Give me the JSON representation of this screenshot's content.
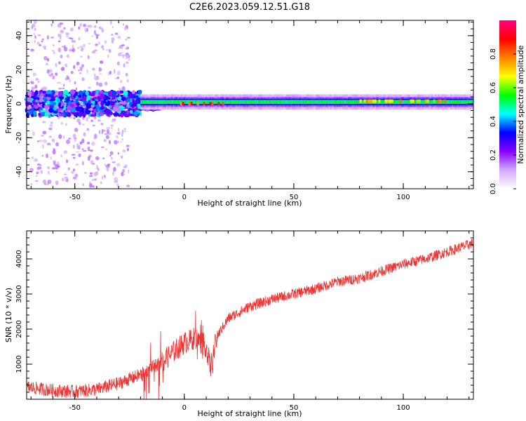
{
  "figure": {
    "title": "C2E6.2023.059.12.51.G18"
  },
  "chart_data": [
    {
      "type": "heatmap",
      "title": "",
      "xlabel": "Height of straight line (km)",
      "ylabel": "Frequency (Hz)",
      "xlim": [
        -72,
        132
      ],
      "ylim": [
        -50,
        49
      ],
      "x_ticks": [
        -50,
        0,
        50,
        100
      ],
      "y_ticks": [
        -40,
        -20,
        0,
        20,
        40
      ],
      "colorbar": {
        "label": "Normalized spectral amplitude",
        "range": [
          0,
          1
        ],
        "ticks": [
          0.0,
          0.2,
          0.4,
          0.6,
          0.8
        ],
        "colormap": [
          "#ffffff",
          "#d2a8ff",
          "#8800ff",
          "#0000ff",
          "#00ffff",
          "#00ff00",
          "#ffff00",
          "#ff8000",
          "#ff0000",
          "#ff0080"
        ]
      },
      "description_features": [
        {
          "x_range": [
            -72,
            -20
          ],
          "freq_center": 0,
          "freq_halfwidth": 6,
          "amplitude": 0.35
        },
        {
          "x_range": [
            -20,
            132
          ],
          "freq_center": 1,
          "freq_halfwidth": 2,
          "amplitude": 0.55
        },
        {
          "x_range": [
            -2,
            18
          ],
          "freq_center": 0,
          "freq_halfwidth": 1,
          "amplitude": 0.95
        },
        {
          "x_range": [
            80,
            120
          ],
          "freq_center": 1.5,
          "freq_halfwidth": 1,
          "amplitude": 0.8
        }
      ]
    },
    {
      "type": "line",
      "title": "",
      "xlabel": "Height of straight line (km)",
      "ylabel": "SNR (10 * v/v)",
      "xlim": [
        -72,
        132
      ],
      "ylim": [
        0,
        4800
      ],
      "x_ticks": [
        -50,
        0,
        50,
        100
      ],
      "y_ticks": [
        1000,
        2000,
        3000,
        4000
      ],
      "series_color": "#ee3333",
      "trend_points": {
        "x": [
          -72,
          -60,
          -50,
          -40,
          -30,
          -20,
          -15,
          -10,
          -5,
          0,
          5,
          10,
          12,
          15,
          20,
          30,
          40,
          50,
          60,
          70,
          80,
          90,
          100,
          110,
          120,
          132
        ],
        "y": [
          350,
          250,
          220,
          280,
          450,
          700,
          900,
          1050,
          1350,
          1600,
          1750,
          1500,
          900,
          1800,
          2300,
          2650,
          2850,
          3000,
          3150,
          3350,
          3450,
          3650,
          3850,
          4000,
          4200,
          4450
        ]
      }
    }
  ]
}
